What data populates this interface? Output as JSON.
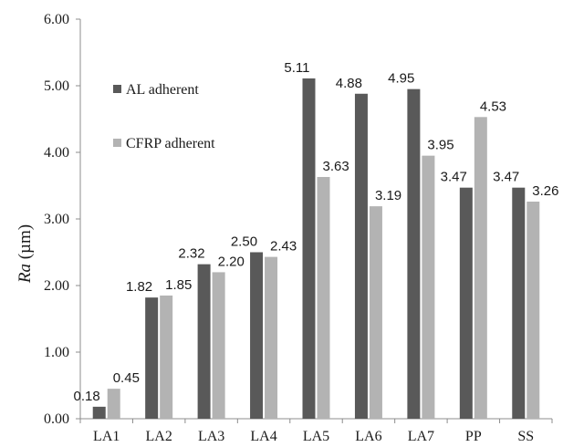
{
  "chart_data": {
    "type": "bar",
    "title": "",
    "xlabel": "",
    "ylabel_italic": "Ra",
    "ylabel_unit": " (µm)",
    "categories": [
      "LA1",
      "LA2",
      "LA3",
      "LA4",
      "LA5",
      "LA6",
      "LA7",
      "PP",
      "SS"
    ],
    "series": [
      {
        "name": "AL adherent",
        "color": "#595959",
        "values": [
          0.18,
          1.82,
          2.32,
          2.5,
          5.11,
          4.88,
          4.95,
          3.47,
          3.47
        ]
      },
      {
        "name": "CFRP adherent",
        "color": "#b3b3b3",
        "values": [
          0.45,
          1.85,
          2.2,
          2.43,
          3.63,
          3.19,
          3.95,
          4.53,
          3.26
        ]
      }
    ],
    "ylim": [
      0,
      6
    ],
    "yticks": [
      "0.00",
      "1.00",
      "2.00",
      "3.00",
      "4.00",
      "5.00",
      "6.00"
    ],
    "grid": false,
    "legend_position": "top-left"
  }
}
